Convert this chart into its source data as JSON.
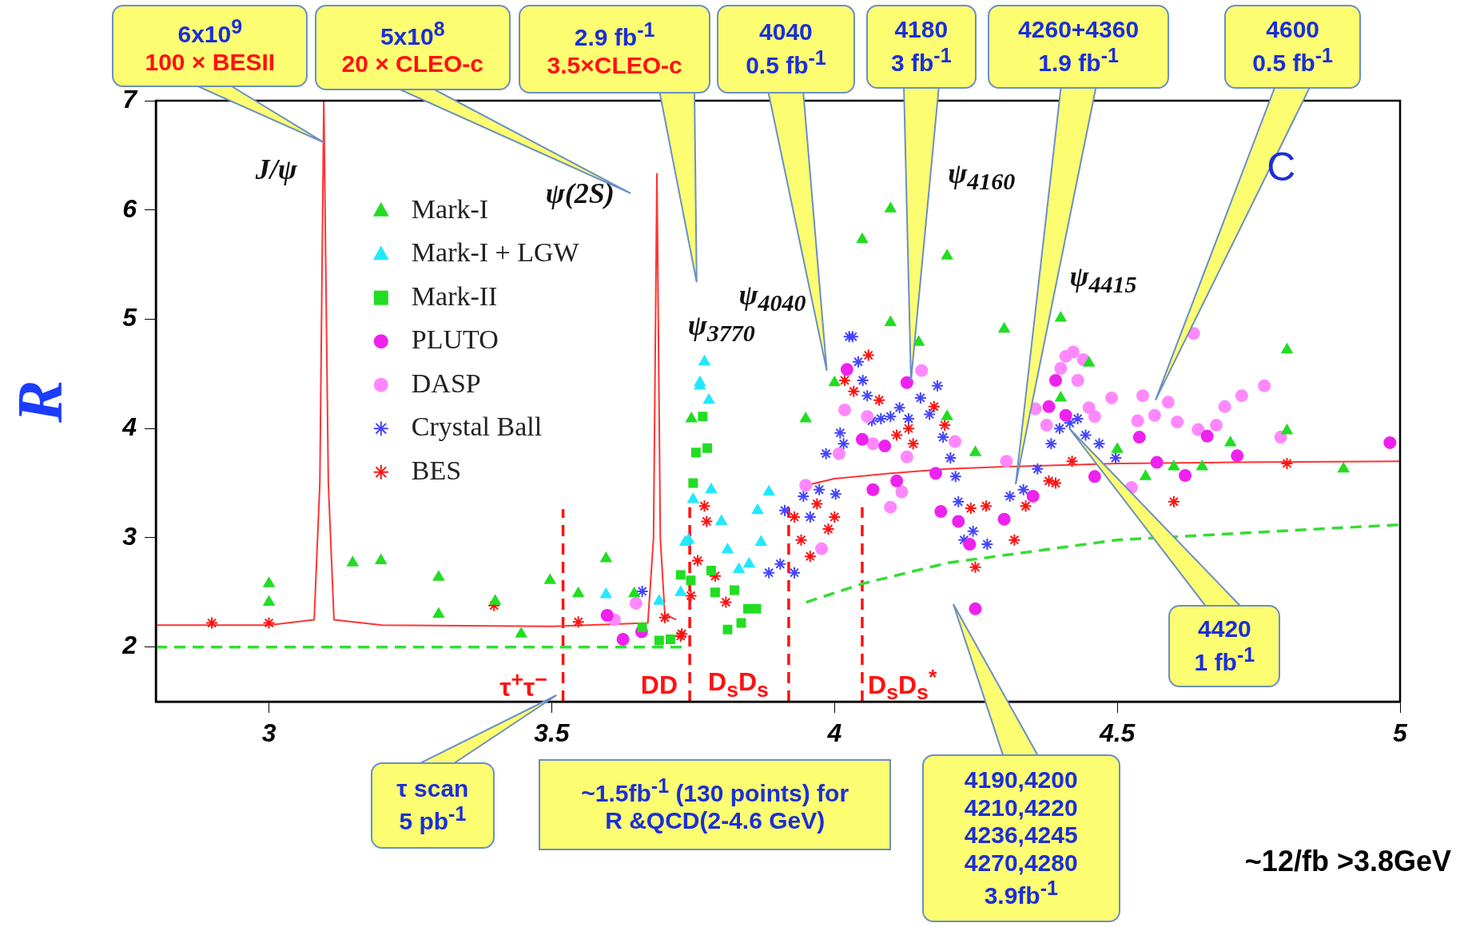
{
  "chart_data": {
    "type": "scatter",
    "ylabel": "R",
    "xlim": [
      2.8,
      5
    ],
    "ylim": [
      1.5,
      7
    ],
    "xticks": [
      3,
      3.5,
      4,
      4.5,
      5
    ],
    "yticks": [
      2,
      3,
      4,
      5,
      6,
      7
    ],
    "grid": false,
    "legend": "top left",
    "series": [
      {
        "name": "Mark-I",
        "type": "scatter",
        "marker": "triangle",
        "color": "#22dd22",
        "x": [
          3.0,
          3.0,
          3.148,
          3.198,
          3.3,
          3.3,
          3.4,
          3.446,
          3.497,
          3.547,
          3.596,
          3.646,
          3.747,
          3.949,
          4.0,
          4.049,
          4.099,
          4.099,
          4.149,
          4.199,
          4.199,
          4.249,
          4.3,
          4.4,
          4.4,
          4.45,
          4.5,
          4.55,
          4.6,
          4.65,
          4.7,
          4.8,
          4.8,
          4.9
        ],
        "values": [
          2.58,
          2.41,
          2.77,
          2.79,
          2.64,
          2.3,
          2.42,
          2.12,
          2.61,
          2.49,
          2.81,
          2.49,
          4.09,
          4.09,
          4.42,
          5.73,
          6.01,
          4.97,
          4.79,
          5.58,
          4.11,
          3.78,
          4.91,
          5.01,
          4.28,
          4.6,
          3.81,
          3.56,
          3.65,
          3.65,
          3.87,
          4.72,
          3.98,
          3.63
        ]
      },
      {
        "name": "Mark-I + LGW",
        "type": "scatter",
        "marker": "triangle",
        "color": "#22e8ff",
        "x": [
          3.596,
          3.69,
          3.728,
          3.736,
          3.742,
          3.75,
          3.762,
          3.762,
          3.77,
          3.778,
          3.782,
          3.8,
          3.811,
          3.831,
          3.849,
          3.864,
          3.87,
          3.884
        ],
        "values": [
          2.48,
          2.42,
          2.5,
          2.96,
          2.98,
          3.35,
          4.39,
          4.42,
          4.61,
          4.26,
          3.44,
          3.15,
          2.89,
          2.71,
          2.76,
          3.25,
          2.96,
          3.42
        ]
      },
      {
        "name": "Mark-II",
        "type": "scatter",
        "marker": "square",
        "color": "#22dd22",
        "x": [
          3.66,
          3.69,
          3.71,
          3.727,
          3.728,
          3.746,
          3.75,
          3.755,
          3.767,
          3.775,
          3.782,
          3.789,
          3.811,
          3.823,
          3.835,
          3.847,
          3.862
        ],
        "values": [
          2.18,
          2.06,
          2.07,
          null,
          2.66,
          2.61,
          3.5,
          3.78,
          4.11,
          3.82,
          2.7,
          2.5,
          2.16,
          2.52,
          2.22,
          2.35,
          2.35
        ]
      },
      {
        "name": "PLUTO",
        "type": "scatter",
        "marker": "circle",
        "color": "#ee22ee",
        "x": [
          3.598,
          3.626,
          3.659,
          4.022,
          4.049,
          4.068,
          4.089,
          4.11,
          4.128,
          4.179,
          4.188,
          4.219,
          4.239,
          4.249,
          4.3,
          4.351,
          4.379,
          4.391,
          4.409,
          4.46,
          4.539,
          4.57,
          4.62,
          4.659,
          4.712,
          4.982
        ],
        "values": [
          2.29,
          2.07,
          2.14,
          4.54,
          3.9,
          3.44,
          3.84,
          3.52,
          4.42,
          3.59,
          3.24,
          3.15,
          2.94,
          2.35,
          3.17,
          3.38,
          4.2,
          4.44,
          4.12,
          3.56,
          3.92,
          3.69,
          3.57,
          3.93,
          3.75,
          3.87
        ]
      },
      {
        "name": "DASP",
        "type": "scatter",
        "marker": "circle",
        "color": "#ff88ff",
        "x": [
          3.611,
          3.623,
          3.649,
          3.949,
          3.977,
          4.008,
          4.018,
          4.058,
          4.068,
          4.099,
          4.119,
          4.128,
          4.154,
          4.213,
          4.304,
          4.355,
          4.375,
          4.4,
          4.409,
          4.422,
          4.43,
          4.44,
          4.45,
          4.46,
          4.49,
          4.525,
          4.536,
          4.545,
          4.566,
          4.59,
          4.606,
          4.635,
          4.643,
          4.675,
          4.69,
          4.72,
          4.76,
          4.789
        ],
        "values": [
          2.25,
          null,
          2.4,
          3.48,
          2.9,
          3.77,
          4.17,
          4.11,
          3.86,
          3.28,
          3.42,
          3.74,
          4.53,
          3.88,
          3.7,
          4.18,
          4.03,
          4.55,
          4.66,
          4.7,
          4.44,
          4.63,
          4.19,
          4.11,
          4.28,
          3.46,
          4.07,
          4.3,
          4.12,
          4.24,
          4.06,
          4.87,
          3.99,
          4.03,
          4.2,
          4.3,
          4.39,
          3.92
        ]
      },
      {
        "name": "Crystal Ball",
        "type": "scatter",
        "marker": "cross",
        "color": "#4444ff",
        "x": [
          3.66,
          3.884,
          3.904,
          3.912,
          3.929,
          3.945,
          3.957,
          3.973,
          3.985,
          4.002,
          4.01,
          4.016,
          4.026,
          4.032,
          4.042,
          4.05,
          4.058,
          4.066,
          4.082,
          4.099,
          4.115,
          4.131,
          4.152,
          4.168,
          4.182,
          4.192,
          4.205,
          4.214,
          4.219,
          4.229,
          4.245,
          4.27,
          4.31,
          4.334,
          4.359,
          4.383,
          4.398,
          4.416,
          4.43,
          4.444,
          4.468,
          4.482,
          4.497
        ],
        "values": [
          2.51,
          2.68,
          2.76,
          3.25,
          2.68,
          3.38,
          3.19,
          3.44,
          3.77,
          3.4,
          3.96,
          3.86,
          4.84,
          4.84,
          4.61,
          4.44,
          4.3,
          4.07,
          4.09,
          4.11,
          4.19,
          4.09,
          4.28,
          4.13,
          4.39,
          3.92,
          3.73,
          3.56,
          3.33,
          2.98,
          3.06,
          2.94,
          3.38,
          3.44,
          3.63,
          3.86,
          4.0,
          4.05,
          4.09,
          3.94,
          3.86,
          null,
          3.73
        ]
      },
      {
        "name": "BES",
        "type": "scatter",
        "marker": "cross",
        "color": "#ff1111",
        "x": [
          2.899,
          3.0,
          3.398,
          3.547,
          3.7,
          3.728,
          3.73,
          3.746,
          3.758,
          3.77,
          3.774,
          3.789,
          3.808,
          3.929,
          3.941,
          3.957,
          3.969,
          3.989,
          4.0,
          4.018,
          4.034,
          4.06,
          4.079,
          4.11,
          4.131,
          4.139,
          4.176,
          4.195,
          4.241,
          4.249,
          4.268,
          4.318,
          4.338,
          4.379,
          4.391,
          4.42,
          4.5,
          4.539,
          4.6,
          4.8
        ],
        "values": [
          2.22,
          2.22,
          2.38,
          2.23,
          2.27,
          2.1,
          2.12,
          2.47,
          2.79,
          3.29,
          3.15,
          2.65,
          2.41,
          3.19,
          2.98,
          2.83,
          3.31,
          3.08,
          3.19,
          4.44,
          4.34,
          4.67,
          4.26,
          3.94,
          4.0,
          3.86,
          4.2,
          4.03,
          3.27,
          2.73,
          3.29,
          2.98,
          3.29,
          3.52,
          3.5,
          3.7,
          null,
          null,
          3.33,
          3.68
        ]
      },
      {
        "type": "line",
        "color": "#ff3333",
        "line_style": "solid",
        "x": [
          2.8,
          3.0,
          3.08,
          3.09,
          3.097,
          3.105,
          3.115,
          3.2,
          3.5,
          3.67,
          3.68,
          3.686,
          3.692,
          3.7,
          3.72,
          3.8,
          3.95,
          4.0,
          4.1,
          4.2,
          4.3,
          4.5,
          4.7,
          5.0
        ],
        "values": [
          2.2,
          2.2,
          2.25,
          3.5,
          7.0,
          3.5,
          2.25,
          2.2,
          2.19,
          2.22,
          3.0,
          6.33,
          3.0,
          2.3,
          2.25,
          null,
          3.48,
          3.54,
          3.59,
          3.63,
          3.65,
          3.68,
          3.69,
          3.7
        ]
      },
      {
        "type": "line",
        "color": "#33dd33",
        "line_style": "dashed",
        "x": [
          2.8,
          3.73,
          3.8,
          3.95,
          4.05,
          4.2,
          4.5,
          5.0
        ],
        "values": [
          2.0,
          2.0,
          null,
          2.41,
          2.58,
          2.77,
          2.98,
          3.12
        ]
      },
      {
        "type": "line",
        "color": "#ff1111",
        "line_style": "dashed",
        "x": [
          3.52,
          3.52
        ],
        "values": [
          1.5,
          3.26
        ]
      },
      {
        "type": "line",
        "color": "#ff1111",
        "line_style": "dashed",
        "x": [
          3.744,
          3.744
        ],
        "values": [
          1.5,
          3.28
        ]
      },
      {
        "type": "line",
        "color": "#ff1111",
        "line_style": "dashed",
        "x": [
          3.919,
          3.919
        ],
        "values": [
          1.5,
          3.28
        ]
      },
      {
        "type": "line",
        "color": "#ff1111",
        "line_style": "dashed",
        "x": [
          4.049,
          4.049
        ],
        "values": [
          1.5,
          3.28
        ]
      }
    ],
    "annotations": [
      "6x10$^{9}$\n100 × BESII",
      "5x10$^{8}$\n20 × CLEO-c",
      "2.9 fb$^{-1}$\n3.5×CLEO-c",
      "4040\n0.5 fb$^{-1}$",
      "4180\n3 fb$^{-1}$",
      "4260+4360\n1.9 fb$^{-1}$",
      "4600\n0.5 fb$^{-1}$",
      "4420\n1 fb$^{-1}$",
      "τ scan\n5 pb$^{-1}$",
      "~1.5fb$^{-1}$ (130 points) for\nR &QCD(2-4.6 GeV)",
      "4190,4200\n4210,4220\n4236,4245\n4270,4280\n3.9fb$^{-1}$",
      "~12/fb >3.8GeV",
      "C",
      "J/ψ",
      "ψ(2S)",
      "ψ$_{3770}$",
      "ψ$_{4040}$",
      "ψ$_{4160}$",
      "ψ$_{4415}$",
      "τ$^{+}$τ$^{−}$",
      "DD",
      "D$_{s}$D$_{s}$",
      "D$_{s}$D$_{s}$$^{*}$"
    ]
  }
}
